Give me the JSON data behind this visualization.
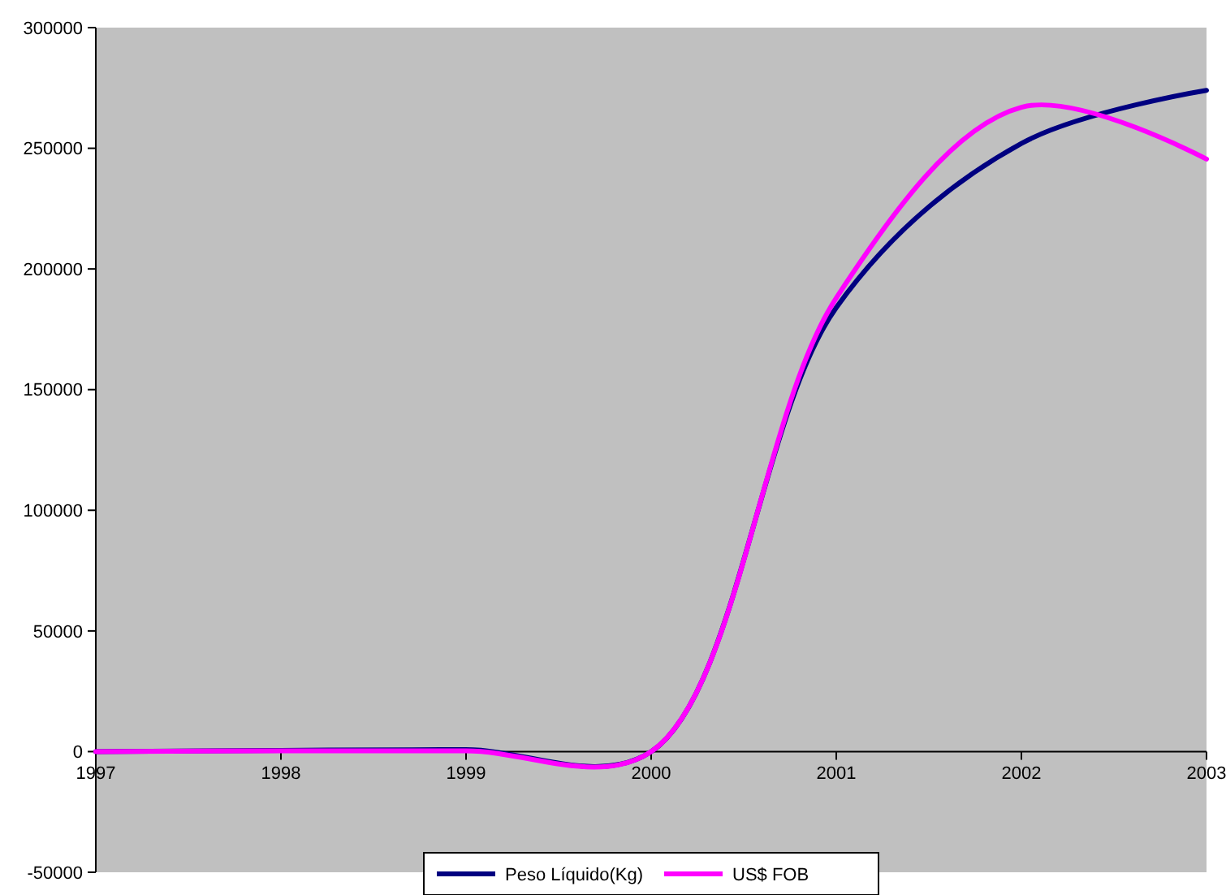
{
  "chart_data": {
    "type": "line",
    "x": [
      1997,
      1998,
      1999,
      2000,
      2001,
      2002,
      2003
    ],
    "series": [
      {
        "name": "Peso Líquido(Kg)",
        "color": "#000080",
        "values": [
          0,
          500,
          800,
          0,
          184000,
          252000,
          274000
        ]
      },
      {
        "name": "US$ FOB",
        "color": "#ff00ff",
        "values": [
          0,
          300,
          300,
          0,
          188000,
          267000,
          245500
        ]
      }
    ],
    "xlim": [
      1997,
      2003
    ],
    "xticks": [
      1997,
      1998,
      1999,
      2000,
      2001,
      2002,
      2003
    ],
    "ylim": [
      -50000,
      300000
    ],
    "yticks": [
      -50000,
      0,
      50000,
      100000,
      150000,
      200000,
      250000,
      300000
    ],
    "grid": false,
    "legend": "bottom",
    "marker": "none",
    "line_style": "solid"
  }
}
